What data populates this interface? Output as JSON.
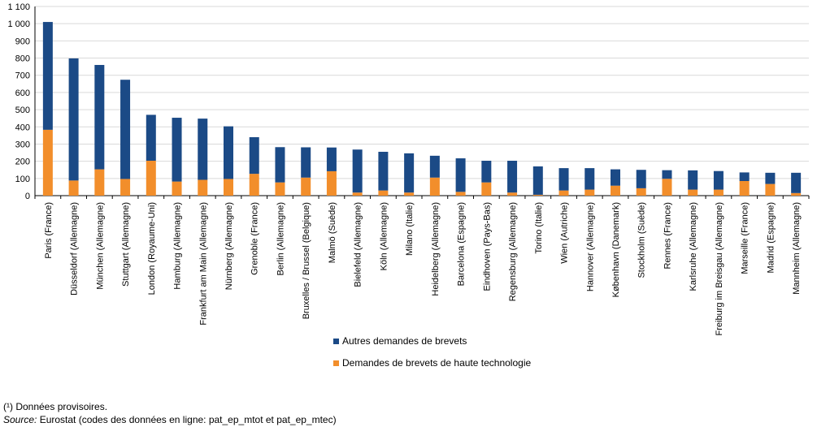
{
  "chart_data": {
    "type": "bar",
    "stacked": true,
    "categories": [
      "Paris (France)",
      "Düsseldorf (Allemagne)",
      "München (Allemagne)",
      "Stuttgart (Allemagne)",
      "London (Royaume-Uni)",
      "Hamburg (Allemagne)",
      "Frankfurt am Main (Allemagne)",
      "Nürnberg (Allemagne)",
      "Grenoble (France)",
      "Berlin (Allemagne)",
      "Bruxelles / Brussel (Belgique)",
      "Malmö (Suède)",
      "Bielefeld (Allemagne)",
      "Köln (Allemagne)",
      "Milano (Italie)",
      "Heidelberg (Allemagne)",
      "Barcelona (Espagne)",
      "Eindhoven (Pays-Bas)",
      "Regensburg (Allemagne)",
      "Torino (Italie)",
      "Wien (Autriche)",
      "Hannover (Allemagne)",
      "København (Danemark)",
      "Stockholm (Suède)",
      "Rennes (France)",
      "Karlsruhe (Allemagne)",
      "Freiburg im Breisgau (Allemagne)",
      "Marseille (France)",
      "Madrid (Espagne)",
      "Mannheim (Allemagne)"
    ],
    "series": [
      {
        "name": "Demandes de brevets de haute technologie",
        "color": "#F28E2B",
        "values": [
          383,
          88,
          153,
          97,
          203,
          82,
          92,
          97,
          127,
          77,
          105,
          142,
          18,
          30,
          18,
          105,
          22,
          77,
          18,
          5,
          30,
          35,
          58,
          43,
          98,
          35,
          35,
          85,
          68,
          15
        ]
      },
      {
        "name": "Autres demandes de brevets",
        "color": "#1B4A86",
        "values": [
          627,
          710,
          607,
          577,
          267,
          371,
          356,
          306,
          213,
          205,
          176,
          138,
          250,
          225,
          228,
          127,
          195,
          126,
          185,
          165,
          130,
          125,
          95,
          107,
          50,
          112,
          108,
          50,
          65,
          118
        ]
      }
    ],
    "ylim": [
      0,
      1100
    ],
    "yticks": [
      "0",
      "100",
      "200",
      "300",
      "400",
      "500",
      "600",
      "700",
      "800",
      "900",
      "1 000",
      "1 100"
    ],
    "grid": true,
    "legend_position": "bottom"
  },
  "legend": {
    "items": [
      {
        "label": "Autres demandes de brevets",
        "color": "#1B4A86"
      },
      {
        "label": "Demandes de brevets de haute technologie",
        "color": "#F28E2B"
      }
    ]
  },
  "notes": {
    "provisional": "(¹) Données provisoires.",
    "source_label": "Source:",
    "source_text": " Eurostat (codes des données en ligne: pat_ep_mtot et pat_ep_mtec)"
  }
}
